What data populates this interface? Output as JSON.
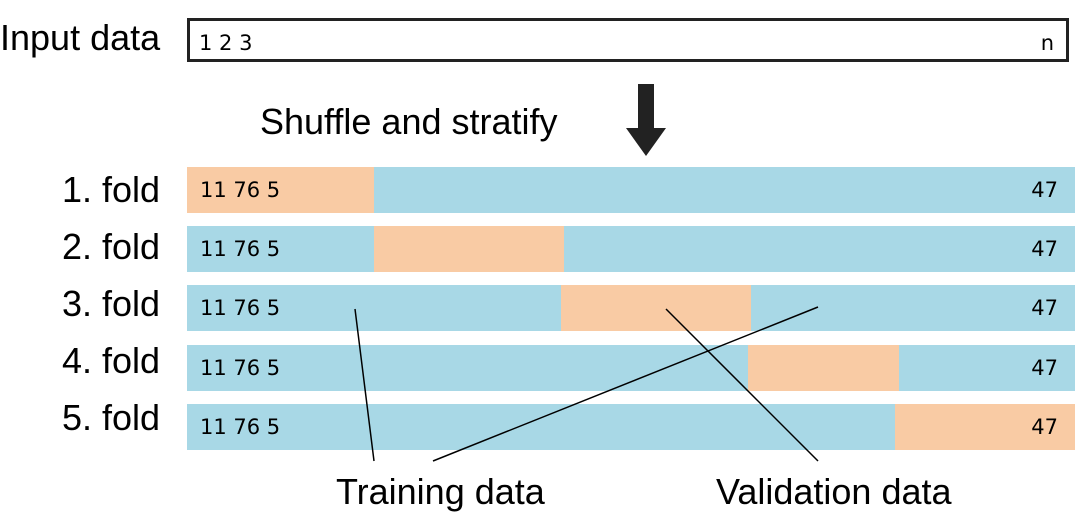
{
  "input": {
    "label": "Input data",
    "start": "1 2 3",
    "end": "n"
  },
  "step_label": "Shuffle and stratify",
  "folds": [
    {
      "label": "1. fold",
      "start": "11 76 5",
      "end": "47"
    },
    {
      "label": "2. fold",
      "start": "11 76 5",
      "end": "47"
    },
    {
      "label": "3. fold",
      "start": "11 76 5",
      "end": "47"
    },
    {
      "label": "4. fold",
      "start": "11 76 5",
      "end": "47"
    },
    {
      "label": "5. fold",
      "start": "11 76 5",
      "end": "47"
    }
  ],
  "legend": {
    "training": "Training data",
    "validation": "Validation data"
  },
  "colors": {
    "training": "#a8d8e6",
    "validation": "#f9cba4"
  }
}
